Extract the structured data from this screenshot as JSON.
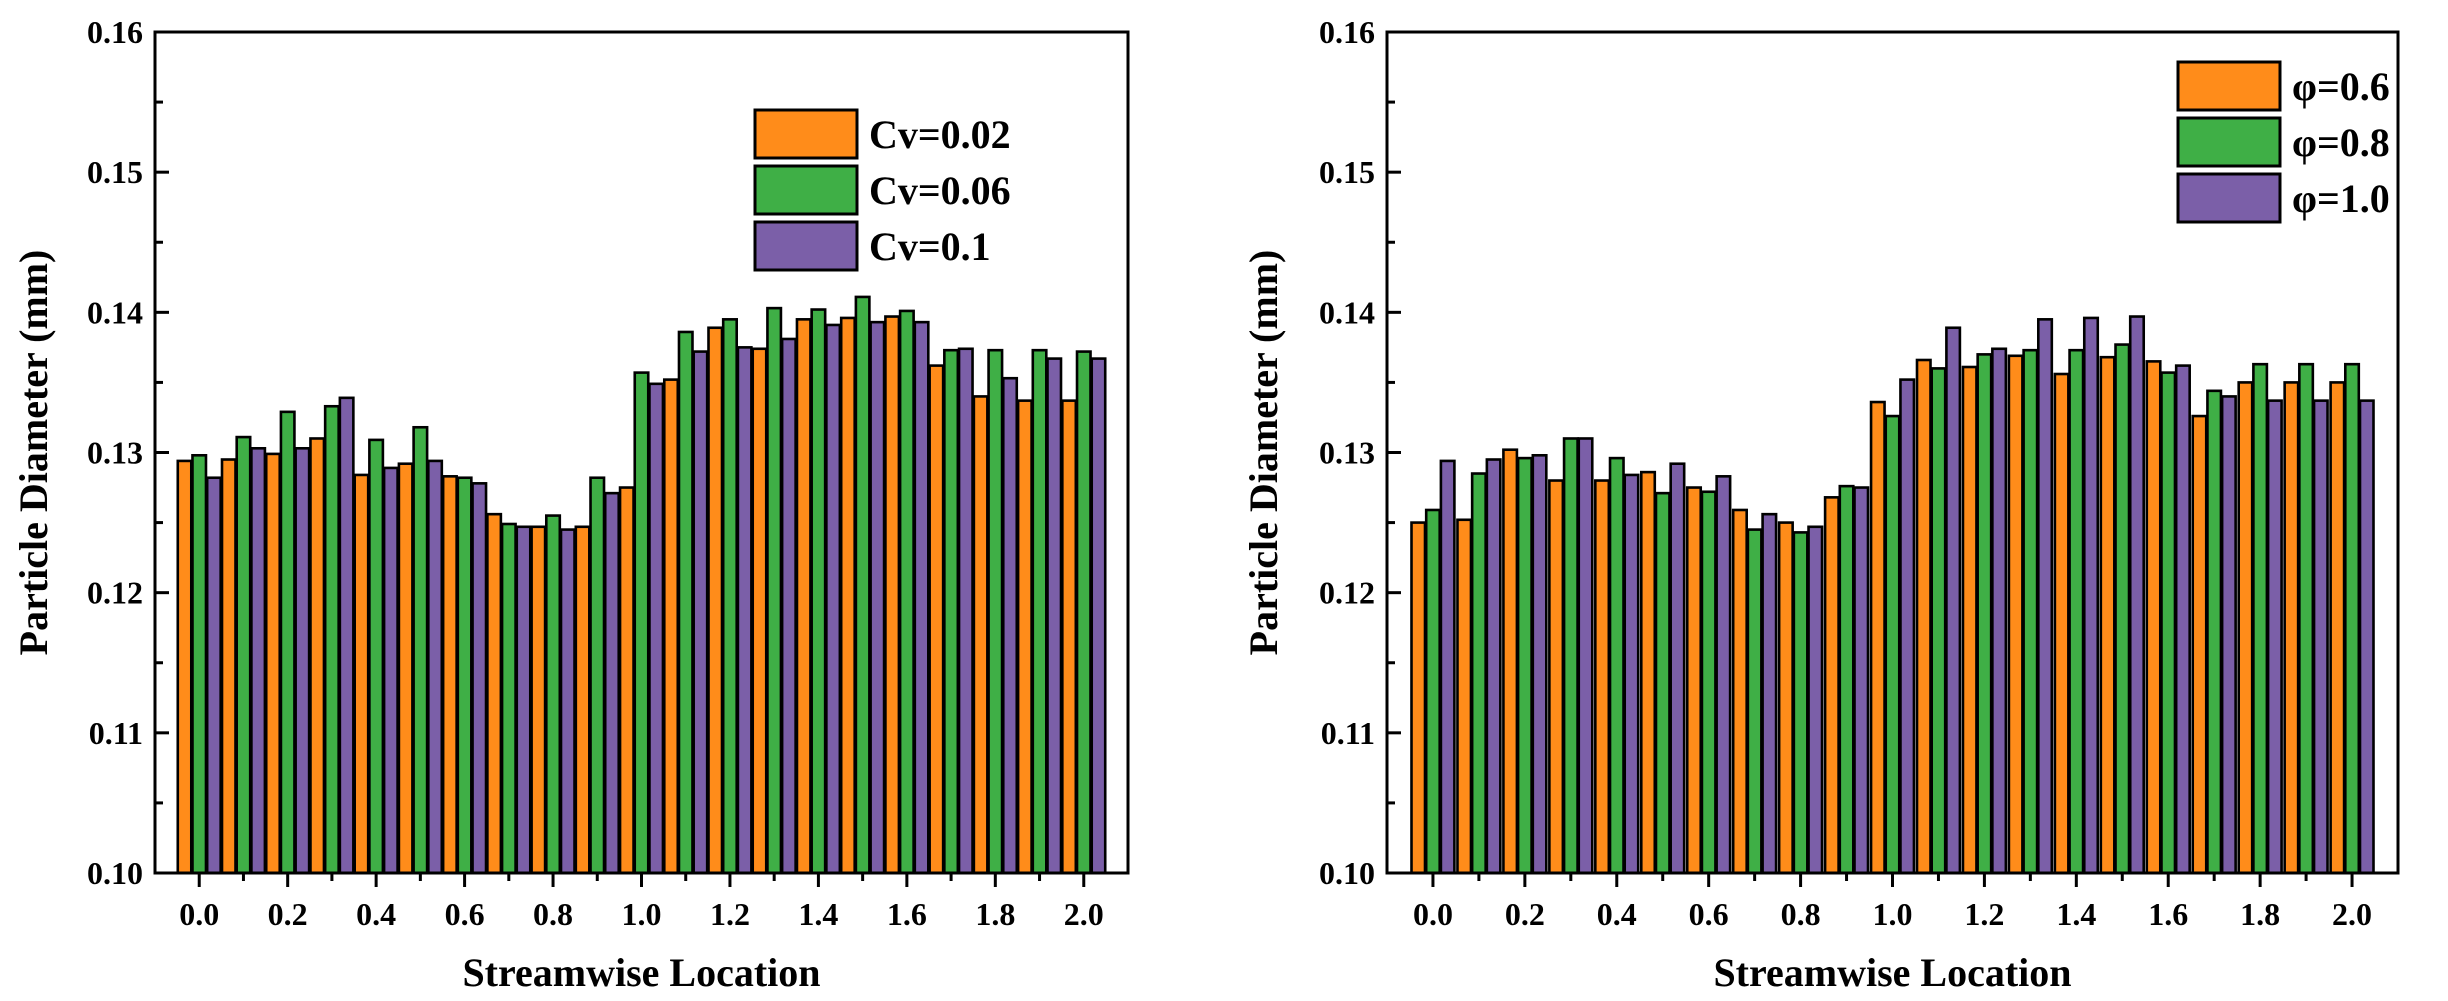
{
  "chart_data": [
    {
      "type": "bar",
      "title": "",
      "xlabel": "Streamwise Location",
      "ylabel": "Particle Diameter (mm)",
      "ylim": [
        0.1,
        0.16
      ],
      "yticks": [
        "0.10",
        "0.11",
        "0.12",
        "0.13",
        "0.14",
        "0.15",
        "0.16"
      ],
      "xticks": [
        "0.0",
        "0.2",
        "0.4",
        "0.6",
        "0.8",
        "1.0",
        "1.2",
        "1.4",
        "1.6",
        "1.8",
        "2.0"
      ],
      "categories": [
        "0.0",
        "0.1",
        "0.2",
        "0.3",
        "0.4",
        "0.5",
        "0.6",
        "0.7",
        "0.8",
        "0.9",
        "1.0",
        "1.1",
        "1.2",
        "1.3",
        "1.4",
        "1.5",
        "1.6",
        "1.7",
        "1.8",
        "1.9",
        "2.0"
      ],
      "legend_position": "top-right",
      "series": [
        {
          "name": "Cv=0.02",
          "color": "#FF8C1A",
          "values": [
            0.1294,
            0.1295,
            0.1299,
            0.131,
            0.1284,
            0.1292,
            0.1283,
            0.1256,
            0.1247,
            0.1247,
            0.1275,
            0.1352,
            0.1389,
            0.1374,
            0.1395,
            0.1396,
            0.1397,
            0.1362,
            0.134,
            0.1337,
            0.1337
          ]
        },
        {
          "name": "Cv=0.06",
          "color": "#3FAF46",
          "values": [
            0.1298,
            0.1311,
            0.1329,
            0.1333,
            0.1309,
            0.1318,
            0.1282,
            0.1249,
            0.1255,
            0.1282,
            0.1357,
            0.1386,
            0.1395,
            0.1403,
            0.1402,
            0.1411,
            0.1401,
            0.1373,
            0.1373,
            0.1373,
            0.1372
          ]
        },
        {
          "name": "Cv=0.1",
          "color": "#7B5FA8",
          "values": [
            0.1282,
            0.1303,
            0.1303,
            0.1339,
            0.1289,
            0.1294,
            0.1278,
            0.1247,
            0.1245,
            0.1271,
            0.1349,
            0.1372,
            0.1375,
            0.1381,
            0.1391,
            0.1393,
            0.1393,
            0.1374,
            0.1353,
            0.1367,
            0.1367
          ]
        }
      ]
    },
    {
      "type": "bar",
      "title": "",
      "xlabel": "Streamwise Location",
      "ylabel": "Particle Diameter (mm)",
      "ylim": [
        0.1,
        0.16
      ],
      "yticks": [
        "0.10",
        "0.11",
        "0.12",
        "0.13",
        "0.14",
        "0.15",
        "0.16"
      ],
      "xticks": [
        "0.0",
        "0.2",
        "0.4",
        "0.6",
        "0.8",
        "1.0",
        "1.2",
        "1.4",
        "1.6",
        "1.8",
        "2.0"
      ],
      "categories": [
        "0.0",
        "0.1",
        "0.2",
        "0.3",
        "0.4",
        "0.5",
        "0.6",
        "0.7",
        "0.8",
        "0.9",
        "1.0",
        "1.1",
        "1.2",
        "1.3",
        "1.4",
        "1.5",
        "1.6",
        "1.7",
        "1.8",
        "1.9",
        "2.0"
      ],
      "legend_position": "top-right",
      "series": [
        {
          "name": "φ=0.6",
          "color": "#FF8C1A",
          "values": [
            0.125,
            0.1252,
            0.1302,
            0.128,
            0.128,
            0.1286,
            0.1275,
            0.1259,
            0.125,
            0.1268,
            0.1336,
            0.1366,
            0.1361,
            0.1369,
            0.1356,
            0.1368,
            0.1365,
            0.1326,
            0.135,
            0.135,
            0.135
          ]
        },
        {
          "name": "φ=0.8",
          "color": "#3FAF46",
          "values": [
            0.1259,
            0.1285,
            0.1296,
            0.131,
            0.1296,
            0.1271,
            0.1272,
            0.1245,
            0.1243,
            0.1276,
            0.1326,
            0.136,
            0.137,
            0.1373,
            0.1373,
            0.1377,
            0.1357,
            0.1344,
            0.1363,
            0.1363,
            0.1363
          ]
        },
        {
          "name": "φ=1.0",
          "color": "#7B5FA8",
          "values": [
            0.1294,
            0.1295,
            0.1298,
            0.131,
            0.1284,
            0.1292,
            0.1283,
            0.1256,
            0.1247,
            0.1275,
            0.1352,
            0.1389,
            0.1374,
            0.1395,
            0.1396,
            0.1397,
            0.1362,
            0.134,
            0.1337,
            0.1337,
            0.1337
          ]
        }
      ]
    }
  ]
}
